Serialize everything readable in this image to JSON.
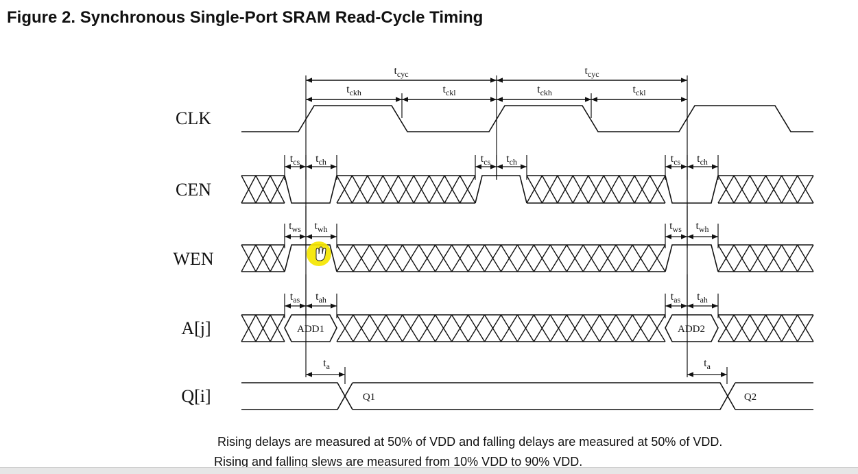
{
  "figure": {
    "title": "Figure 2. Synchronous Single-Port SRAM Read-Cycle Timing"
  },
  "signals": {
    "clk": "CLK",
    "cen": "CEN",
    "wen": "WEN",
    "addr": "A[j]",
    "q": "Q[i]"
  },
  "timing_labels": {
    "cycle": {
      "base": "t",
      "sub": "cyc"
    },
    "clock_high": {
      "base": "t",
      "sub": "ckh"
    },
    "clock_low": {
      "base": "t",
      "sub": "ckl"
    },
    "cen_setup": {
      "base": "t",
      "sub": "cs"
    },
    "cen_hold": {
      "base": "t",
      "sub": "ch"
    },
    "wen_setup": {
      "base": "t",
      "sub": "ws"
    },
    "wen_hold": {
      "base": "t",
      "sub": "wh"
    },
    "addr_setup": {
      "base": "t",
      "sub": "as"
    },
    "addr_hold": {
      "base": "t",
      "sub": "ah"
    },
    "access": {
      "base": "t",
      "sub": "a"
    }
  },
  "bus_values": {
    "address1": "ADD1",
    "address2": "ADD2",
    "output1": "Q1",
    "output2": "Q2"
  },
  "notes": {
    "line1": "Rising delays are measured at 50% of VDD and falling delays are measured at 50% of VDD.",
    "line2": "Rising and falling slews are measured from 10% VDD to 90% VDD."
  },
  "cursor": {
    "icon": "hand-cursor-icon",
    "highlight_color": "#f5e600"
  }
}
